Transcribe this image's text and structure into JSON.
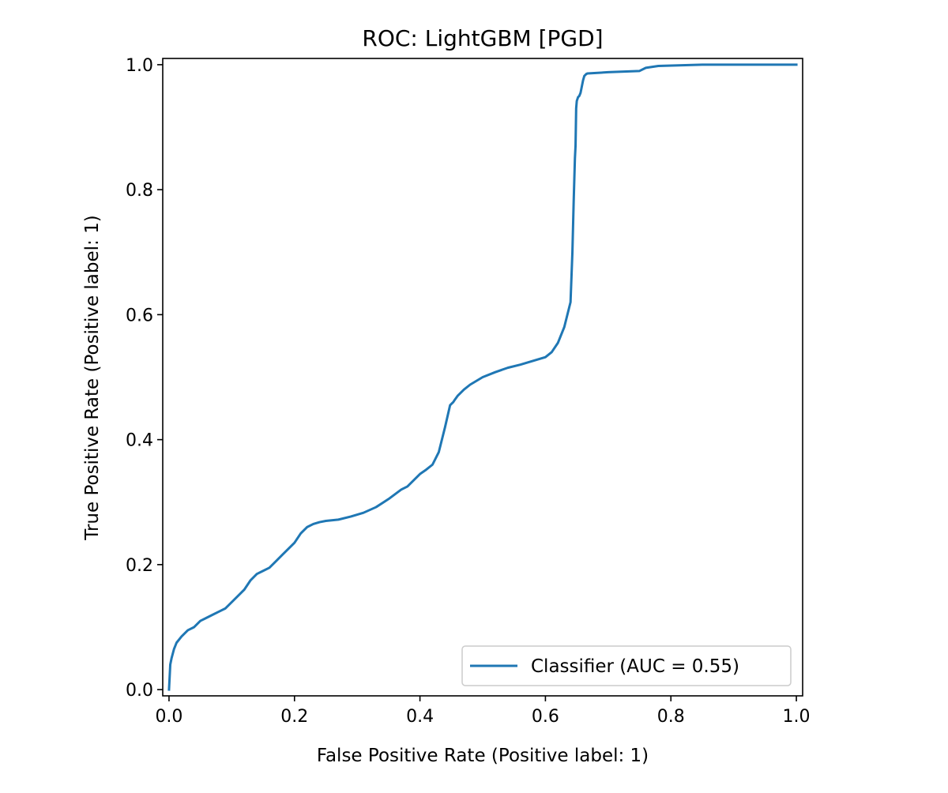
{
  "chart_data": {
    "type": "line",
    "title": "ROC: LightGBM [PGD]",
    "xlabel": "False Positive Rate (Positive label: 1)",
    "ylabel": "True Positive Rate (Positive label: 1)",
    "xlim": [
      -0.01,
      1.01
    ],
    "ylim": [
      -0.01,
      1.01
    ],
    "xticks": [
      0.0,
      0.2,
      0.4,
      0.6,
      0.8,
      1.0
    ],
    "xtick_labels": [
      "0.0",
      "0.2",
      "0.4",
      "0.6",
      "0.8",
      "1.0"
    ],
    "yticks": [
      0.0,
      0.2,
      0.4,
      0.6,
      0.8,
      1.0
    ],
    "ytick_labels": [
      "0.0",
      "0.2",
      "0.4",
      "0.6",
      "0.8",
      "1.0"
    ],
    "grid": false,
    "legend_position": "lower right",
    "series": [
      {
        "name": "Classifier (AUC = 0.55)",
        "color": "#1f77b4",
        "x": [
          0.0,
          0.002,
          0.004,
          0.008,
          0.012,
          0.02,
          0.03,
          0.04,
          0.05,
          0.06,
          0.07,
          0.08,
          0.09,
          0.1,
          0.11,
          0.12,
          0.13,
          0.14,
          0.15,
          0.16,
          0.17,
          0.18,
          0.19,
          0.2,
          0.21,
          0.22,
          0.23,
          0.24,
          0.25,
          0.27,
          0.29,
          0.31,
          0.33,
          0.35,
          0.37,
          0.38,
          0.39,
          0.4,
          0.41,
          0.42,
          0.43,
          0.44,
          0.448,
          0.451,
          0.453,
          0.455,
          0.46,
          0.47,
          0.48,
          0.5,
          0.52,
          0.54,
          0.56,
          0.58,
          0.6,
          0.61,
          0.62,
          0.63,
          0.64,
          0.643,
          0.645,
          0.647,
          0.648,
          0.649,
          0.65,
          0.652,
          0.654,
          0.656,
          0.66,
          0.662,
          0.665,
          0.667,
          0.7,
          0.75,
          0.76,
          0.78,
          0.85,
          1.0
        ],
        "y": [
          0.0,
          0.04,
          0.05,
          0.065,
          0.075,
          0.085,
          0.095,
          0.1,
          0.11,
          0.115,
          0.12,
          0.125,
          0.13,
          0.14,
          0.15,
          0.16,
          0.175,
          0.185,
          0.19,
          0.195,
          0.205,
          0.215,
          0.225,
          0.235,
          0.25,
          0.26,
          0.265,
          0.268,
          0.27,
          0.272,
          0.277,
          0.283,
          0.292,
          0.305,
          0.32,
          0.325,
          0.335,
          0.345,
          0.352,
          0.36,
          0.38,
          0.42,
          0.455,
          0.458,
          0.46,
          0.463,
          0.47,
          0.48,
          0.488,
          0.5,
          0.508,
          0.515,
          0.52,
          0.526,
          0.532,
          0.54,
          0.555,
          0.58,
          0.62,
          0.7,
          0.78,
          0.85,
          0.87,
          0.93,
          0.942,
          0.948,
          0.95,
          0.955,
          0.975,
          0.982,
          0.985,
          0.986,
          0.988,
          0.99,
          0.995,
          0.998,
          1.0,
          1.0
        ]
      }
    ]
  }
}
